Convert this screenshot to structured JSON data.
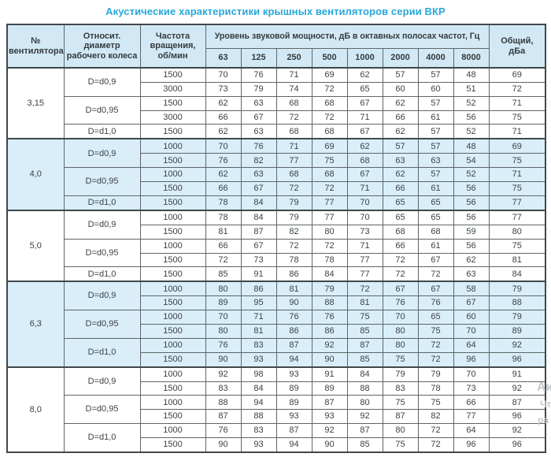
{
  "title": "Акустические характеристики крышных вентиляторов серии ВКР",
  "colors": {
    "accent": "#29a7da",
    "header_bg": "#d2e9f5",
    "tint_row_bg": "#d9eef8",
    "border": "#41474b",
    "text": "#3c4247",
    "watermark": "#c6c8ca"
  },
  "watermark": {
    "fragments": [
      "Ак",
      "Чт",
      "ра"
    ]
  },
  "table": {
    "headers": {
      "fan": "№\nвентилятора",
      "diameter": "Относит. диаметр\nрабочего колеса",
      "rpm": "Частота\nвращения,\nоб/мин",
      "levels_span": "Уровень звуковой мощности, дБ в октавных полосах частот, Гц",
      "total": "Общий,\nдБа"
    },
    "freq_headers": [
      "63",
      "125",
      "250",
      "500",
      "1000",
      "2000",
      "4000",
      "8000"
    ],
    "groups": [
      {
        "fan": "3,15",
        "tinted": false,
        "diameters": [
          {
            "label": "D=d0,9",
            "rows": [
              {
                "rpm": "1500",
                "values": [
                  "70",
                  "76",
                  "71",
                  "69",
                  "62",
                  "57",
                  "57",
                  "48"
                ],
                "total": "69"
              },
              {
                "rpm": "3000",
                "values": [
                  "73",
                  "79",
                  "74",
                  "72",
                  "65",
                  "60",
                  "60",
                  "51"
                ],
                "total": "72"
              }
            ]
          },
          {
            "label": "D=d0,95",
            "rows": [
              {
                "rpm": "1500",
                "values": [
                  "62",
                  "63",
                  "68",
                  "68",
                  "67",
                  "62",
                  "57",
                  "52"
                ],
                "total": "71"
              },
              {
                "rpm": "3000",
                "values": [
                  "66",
                  "67",
                  "72",
                  "72",
                  "71",
                  "66",
                  "61",
                  "56"
                ],
                "total": "75"
              }
            ]
          },
          {
            "label": "D=d1,0",
            "rows": [
              {
                "rpm": "1500",
                "values": [
                  "62",
                  "63",
                  "68",
                  "68",
                  "67",
                  "62",
                  "57",
                  "52"
                ],
                "total": "71"
              }
            ]
          }
        ]
      },
      {
        "fan": "4,0",
        "tinted": true,
        "diameters": [
          {
            "label": "D=d0,9",
            "rows": [
              {
                "rpm": "1000",
                "values": [
                  "70",
                  "76",
                  "71",
                  "69",
                  "62",
                  "57",
                  "57",
                  "48"
                ],
                "total": "69"
              },
              {
                "rpm": "1500",
                "values": [
                  "76",
                  "82",
                  "77",
                  "75",
                  "68",
                  "63",
                  "63",
                  "54"
                ],
                "total": "75"
              }
            ]
          },
          {
            "label": "D=d0,95",
            "rows": [
              {
                "rpm": "1000",
                "values": [
                  "62",
                  "63",
                  "68",
                  "68",
                  "67",
                  "62",
                  "57",
                  "52"
                ],
                "total": "71"
              },
              {
                "rpm": "1500",
                "values": [
                  "66",
                  "67",
                  "72",
                  "72",
                  "71",
                  "66",
                  "61",
                  "56"
                ],
                "total": "75"
              }
            ]
          },
          {
            "label": "D=d1,0",
            "rows": [
              {
                "rpm": "1500",
                "values": [
                  "78",
                  "84",
                  "79",
                  "77",
                  "70",
                  "65",
                  "65",
                  "56"
                ],
                "total": "77"
              }
            ]
          }
        ]
      },
      {
        "fan": "5,0",
        "tinted": false,
        "diameters": [
          {
            "label": "D=d0,9",
            "rows": [
              {
                "rpm": "1000",
                "values": [
                  "78",
                  "84",
                  "79",
                  "77",
                  "70",
                  "65",
                  "65",
                  "56"
                ],
                "total": "77"
              },
              {
                "rpm": "1500",
                "values": [
                  "81",
                  "87",
                  "82",
                  "80",
                  "73",
                  "68",
                  "68",
                  "59"
                ],
                "total": "80"
              }
            ]
          },
          {
            "label": "D=d0,95",
            "rows": [
              {
                "rpm": "1000",
                "values": [
                  "66",
                  "67",
                  "72",
                  "72",
                  "71",
                  "66",
                  "61",
                  "56"
                ],
                "total": "75"
              },
              {
                "rpm": "1500",
                "values": [
                  "72",
                  "73",
                  "78",
                  "78",
                  "77",
                  "72",
                  "67",
                  "62"
                ],
                "total": "81"
              }
            ]
          },
          {
            "label": "D=d1,0",
            "rows": [
              {
                "rpm": "1500",
                "values": [
                  "85",
                  "91",
                  "86",
                  "84",
                  "77",
                  "72",
                  "72",
                  "63"
                ],
                "total": "84"
              }
            ]
          }
        ]
      },
      {
        "fan": "6,3",
        "tinted": true,
        "diameters": [
          {
            "label": "D=d0,9",
            "rows": [
              {
                "rpm": "1000",
                "values": [
                  "80",
                  "86",
                  "81",
                  "79",
                  "72",
                  "67",
                  "67",
                  "58"
                ],
                "total": "79"
              },
              {
                "rpm": "1500",
                "values": [
                  "89",
                  "95",
                  "90",
                  "88",
                  "81",
                  "76",
                  "76",
                  "67"
                ],
                "total": "88"
              }
            ]
          },
          {
            "label": "D=d0,95",
            "rows": [
              {
                "rpm": "1000",
                "values": [
                  "70",
                  "71",
                  "76",
                  "76",
                  "75",
                  "70",
                  "65",
                  "60"
                ],
                "total": "79"
              },
              {
                "rpm": "1500",
                "values": [
                  "80",
                  "81",
                  "86",
                  "86",
                  "85",
                  "80",
                  "75",
                  "70"
                ],
                "total": "89"
              }
            ]
          },
          {
            "label": "D=d1,0",
            "rows": [
              {
                "rpm": "1000",
                "values": [
                  "76",
                  "83",
                  "87",
                  "92",
                  "87",
                  "80",
                  "72",
                  "64"
                ],
                "total": "92"
              },
              {
                "rpm": "1500",
                "values": [
                  "90",
                  "93",
                  "94",
                  "90",
                  "85",
                  "75",
                  "72",
                  "96"
                ],
                "total": "96"
              }
            ]
          }
        ]
      },
      {
        "fan": "8,0",
        "tinted": false,
        "diameters": [
          {
            "label": "D=d0,9",
            "rows": [
              {
                "rpm": "1000",
                "values": [
                  "92",
                  "98",
                  "93",
                  "91",
                  "84",
                  "79",
                  "79",
                  "70"
                ],
                "total": "91"
              },
              {
                "rpm": "1500",
                "values": [
                  "83",
                  "84",
                  "89",
                  "89",
                  "88",
                  "83",
                  "78",
                  "73"
                ],
                "total": "92"
              }
            ]
          },
          {
            "label": "D=d0,95",
            "rows": [
              {
                "rpm": "1000",
                "values": [
                  "88",
                  "94",
                  "89",
                  "87",
                  "80",
                  "75",
                  "75",
                  "66"
                ],
                "total": "87"
              },
              {
                "rpm": "1500",
                "values": [
                  "87",
                  "88",
                  "93",
                  "93",
                  "92",
                  "87",
                  "82",
                  "77"
                ],
                "total": "96"
              }
            ]
          },
          {
            "label": "D=d1,0",
            "rows": [
              {
                "rpm": "1000",
                "values": [
                  "76",
                  "83",
                  "87",
                  "92",
                  "87",
                  "80",
                  "72",
                  "64"
                ],
                "total": "92"
              },
              {
                "rpm": "1500",
                "values": [
                  "90",
                  "93",
                  "94",
                  "90",
                  "85",
                  "75",
                  "72",
                  "96"
                ],
                "total": "96"
              }
            ]
          }
        ]
      }
    ]
  }
}
